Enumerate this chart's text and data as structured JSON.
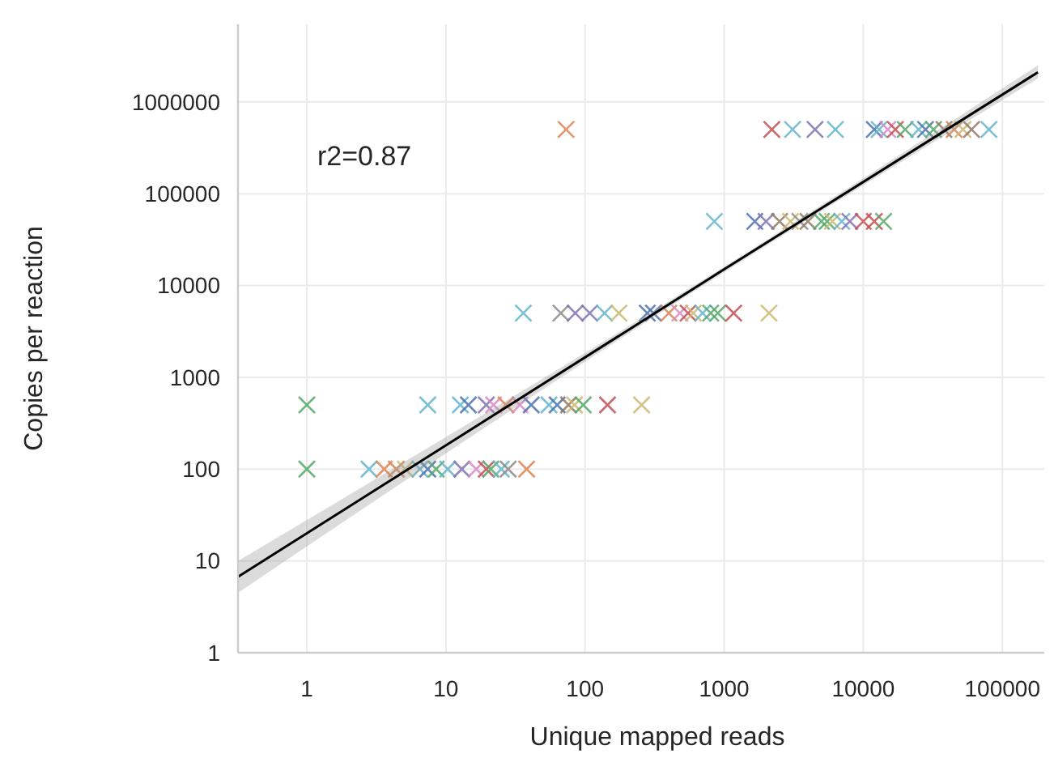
{
  "chart_data": {
    "type": "scatter",
    "xlabel": "Unique mapped reads",
    "ylabel": "Copies per reaction",
    "log": "xy",
    "grid": true,
    "xlim": [
      0.32,
      200000
    ],
    "ylim": [
      1,
      7000000
    ],
    "xticks": [
      1,
      10,
      100,
      1000,
      10000,
      100000
    ],
    "yticks": [
      1,
      10,
      100,
      1000,
      10000,
      100000,
      1000000
    ],
    "annotations": [
      "r2=0.87"
    ],
    "series": [
      {
        "marker": "cross",
        "x": [
          73,
          2200,
          3100,
          4500,
          6300,
          12000,
          13000,
          15000,
          17000,
          20000,
          25000,
          28000,
          32000,
          38000,
          45000,
          52000,
          60000,
          80000
        ],
        "values": [
          500000,
          500000,
          500000,
          500000,
          500000,
          500000,
          500000,
          500000,
          500000,
          500000,
          500000,
          500000,
          500000,
          500000,
          500000,
          500000,
          500000,
          500000
        ],
        "colors": [
          "#dd8452",
          "#c44e52",
          "#64b5cd",
          "#8172b3",
          "#64b5cd",
          "#4c72b0",
          "#64b5cd",
          "#da8bc3",
          "#c44e52",
          "#55a868",
          "#64b5cd",
          "#4c72b0",
          "#55a868",
          "#937860",
          "#dd8452",
          "#ccb974",
          "#937860",
          "#64b5cd"
        ]
      },
      {
        "marker": "cross",
        "x": [
          850,
          1660,
          2000,
          2500,
          3000,
          3500,
          4000,
          5000,
          5500,
          6000,
          7000,
          8000,
          10000,
          12000,
          14000
        ],
        "values": [
          50000,
          50000,
          50000,
          50000,
          50000,
          50000,
          50000,
          50000,
          50000,
          50000,
          50000,
          50000,
          50000,
          50000,
          50000
        ],
        "colors": [
          "#64b5cd",
          "#4c72b0",
          "#8172b3",
          "#937860",
          "#ccb974",
          "#8c8c8c",
          "#937860",
          "#55a868",
          "#55a868",
          "#ccb974",
          "#64b5cd",
          "#8172b3",
          "#c44e52",
          "#c44e52",
          "#55a868"
        ]
      },
      {
        "marker": "cross",
        "x": [
          36,
          67,
          85,
          108,
          138,
          175,
          280,
          310,
          400,
          480,
          550,
          600,
          700,
          800,
          900,
          1170,
          2100
        ],
        "values": [
          5000,
          5000,
          5000,
          5000,
          5000,
          5000,
          5000,
          5000,
          5000,
          5000,
          5000,
          5000,
          5000,
          5000,
          5000,
          5000,
          5000
        ],
        "colors": [
          "#64b5cd",
          "#8c8c8c",
          "#8172b3",
          "#8172b3",
          "#64b5cd",
          "#ccb974",
          "#4c72b0",
          "#4c72b0",
          "#dd8452",
          "#da8bc3",
          "#c44e52",
          "#ccb974",
          "#64b5cd",
          "#55a868",
          "#55a868",
          "#c44e52",
          "#ccb974"
        ]
      },
      {
        "marker": "cross",
        "x": [
          1,
          7.4,
          12.7,
          14.5,
          19.5,
          22,
          27,
          34,
          41,
          55,
          63,
          76,
          84,
          97,
          145,
          255
        ],
        "values": [
          500,
          500,
          500,
          500,
          500,
          500,
          500,
          500,
          500,
          500,
          500,
          500,
          500,
          500,
          500,
          500
        ],
        "colors": [
          "#55a868",
          "#64b5cd",
          "#64b5cd",
          "#4c72b0",
          "#8172b3",
          "#da8bc3",
          "#dd8452",
          "#da8bc3",
          "#4c72b0",
          "#64b5cd",
          "#4c72b0",
          "#937860",
          "#ccb974",
          "#55a868",
          "#c44e52",
          "#ccb974"
        ]
      },
      {
        "marker": "cross",
        "x": [
          1,
          2.8,
          3.6,
          4.4,
          5.1,
          6.5,
          7.4,
          8.5,
          10.3,
          13,
          16.5,
          19.5,
          21,
          25,
          28,
          38
        ],
        "values": [
          100,
          100,
          100,
          100,
          100,
          100,
          100,
          100,
          100,
          100,
          100,
          100,
          100,
          100,
          100,
          100
        ],
        "colors": [
          "#55a868",
          "#64b5cd",
          "#dd8452",
          "#dd8452",
          "#ccb974",
          "#64b5cd",
          "#4c72b0",
          "#55a868",
          "#64b5cd",
          "#8172b3",
          "#da8bc3",
          "#c44e52",
          "#55a868",
          "#64b5cd",
          "#8c8c8c",
          "#dd8452"
        ]
      },
      {
        "type": "line",
        "color": "#000000",
        "x": [
          0.32,
          1000,
          180000
        ],
        "values": [
          6.7,
          15000,
          2100000
        ],
        "lower": [
          4.5,
          14000,
          1800000
        ],
        "upper": [
          10,
          16000,
          2500000
        ]
      }
    ]
  }
}
